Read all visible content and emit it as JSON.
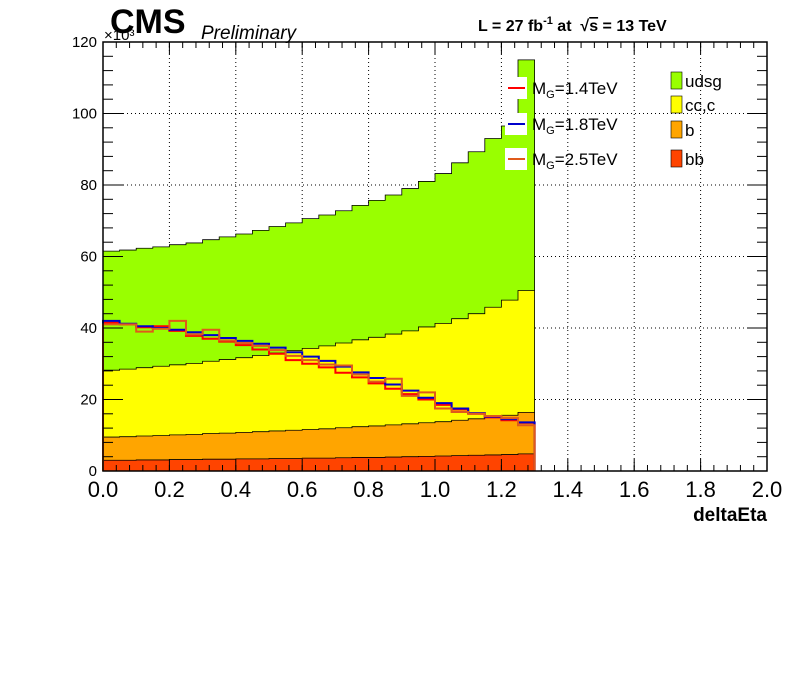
{
  "header": {
    "experiment": "CMS",
    "status": "Preliminary",
    "lumi_prefix": "L = 27 fb",
    "lumi_exp": "-1",
    "lumi_mid": " at  ",
    "sqrt_symbol": "√",
    "energy_var": "s",
    "energy_suffix": " = 13 TeV"
  },
  "colors": {
    "udsg": "#99ff00",
    "cc_c": "#ffff00",
    "b": "#ffa500",
    "bb": "#ff4400",
    "signal_14": "#ff0000",
    "signal_18": "#0000cc",
    "signal_25": "#e05a1a"
  },
  "chart_data": {
    "type": "area",
    "stacked": true,
    "xlabel": "deltaEta",
    "ylabel": "",
    "y_multiplier_label": "×10³",
    "xlim": [
      0.0,
      2.0
    ],
    "ylim": [
      0,
      120
    ],
    "x_ticks": [
      "0.0",
      "0.2",
      "0.4",
      "0.6",
      "0.8",
      "1.0",
      "1.2",
      "1.4",
      "1.6",
      "1.8",
      "2.0"
    ],
    "y_ticks": [
      "0",
      "20",
      "40",
      "60",
      "80",
      "100",
      "120"
    ],
    "grid": true,
    "bin_width": 0.05,
    "bin_edges_start": 0.0,
    "nbins_filled": 26,
    "stack": [
      {
        "name": "bb",
        "values": [
          3.0,
          3.0,
          3.1,
          3.1,
          3.2,
          3.2,
          3.3,
          3.3,
          3.4,
          3.4,
          3.5,
          3.5,
          3.6,
          3.6,
          3.7,
          3.8,
          3.8,
          3.9,
          4.0,
          4.1,
          4.2,
          4.3,
          4.4,
          4.5,
          4.6,
          4.8
        ]
      },
      {
        "name": "b",
        "values": [
          6.5,
          6.6,
          6.7,
          6.8,
          6.9,
          7.0,
          7.2,
          7.3,
          7.4,
          7.6,
          7.7,
          7.9,
          8.0,
          8.2,
          8.4,
          8.6,
          8.8,
          9.0,
          9.2,
          9.4,
          9.6,
          9.9,
          10.2,
          10.6,
          11.0,
          11.6
        ]
      },
      {
        "name": "cc,c",
        "values": [
          18.7,
          18.9,
          19.1,
          19.4,
          19.6,
          19.9,
          20.2,
          20.6,
          20.9,
          21.3,
          21.8,
          22.3,
          22.7,
          23.2,
          23.7,
          24.3,
          24.8,
          25.4,
          26.0,
          26.8,
          27.5,
          28.4,
          29.4,
          30.7,
          32.2,
          34.1
        ]
      },
      {
        "name": "udsg",
        "values": [
          33.3,
          33.3,
          33.4,
          33.4,
          33.6,
          33.7,
          34.0,
          34.3,
          34.6,
          35.0,
          35.4,
          35.7,
          36.3,
          36.6,
          37.0,
          37.6,
          38.3,
          38.9,
          39.8,
          40.7,
          41.9,
          43.6,
          45.3,
          47.2,
          48.7,
          64.5
        ]
      }
    ],
    "series": [
      {
        "name": "M_G=1.4TeV",
        "color_key": "signal_14",
        "values": [
          41.5,
          41.0,
          40.2,
          40.5,
          39.2,
          37.8,
          37.0,
          36.2,
          35.2,
          34.0,
          32.8,
          31.0,
          30.0,
          29.0,
          27.5,
          26.2,
          24.5,
          23.0,
          21.5,
          20.0,
          18.5,
          17.2,
          16.0,
          15.0,
          14.2,
          13.5
        ]
      },
      {
        "name": "M_G=1.8TeV",
        "color_key": "signal_18",
        "values": [
          42.0,
          41.2,
          40.5,
          40.0,
          39.5,
          38.8,
          38.0,
          37.2,
          36.4,
          35.6,
          34.5,
          33.2,
          32.0,
          30.8,
          29.2,
          27.6,
          26.0,
          24.2,
          22.5,
          20.5,
          19.0,
          17.5,
          16.2,
          15.2,
          14.5,
          13.6
        ]
      },
      {
        "name": "M_G=2.5TeV",
        "color_key": "signal_25",
        "values": [
          41.0,
          41.0,
          39.0,
          39.8,
          42.0,
          38.2,
          39.5,
          36.5,
          35.8,
          35.0,
          33.8,
          32.2,
          31.0,
          29.8,
          29.5,
          27.0,
          25.0,
          25.8,
          21.0,
          22.0,
          17.5,
          16.5,
          16.0,
          15.4,
          14.8,
          12.8
        ]
      }
    ],
    "legend": {
      "signals": [
        {
          "label_main": "M",
          "label_sub": "G",
          "label_rest": "=1.4TeV",
          "color_key": "signal_14"
        },
        {
          "label_main": "M",
          "label_sub": "G",
          "label_rest": "=1.8TeV",
          "color_key": "signal_18"
        },
        {
          "label_main": "M",
          "label_sub": "G",
          "label_rest": "=2.5TeV",
          "color_key": "signal_25"
        }
      ],
      "backgrounds": [
        {
          "label": "udsg",
          "color_key": "udsg"
        },
        {
          "label": "cc,c",
          "color_key": "cc_c"
        },
        {
          "label": "b",
          "color_key": "b"
        },
        {
          "label": "bb",
          "color_key": "bb"
        }
      ]
    }
  }
}
